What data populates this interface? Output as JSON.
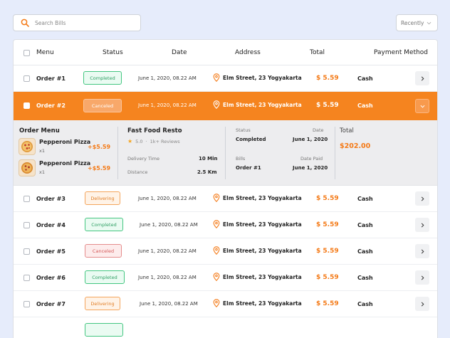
{
  "search": {
    "placeholder": "Search Bills"
  },
  "sort": {
    "label": "Recently"
  },
  "columns": {
    "menu": "Menu",
    "status": "Status",
    "date": "Date",
    "address": "Address",
    "total": "Total",
    "payment": "Payment Method"
  },
  "orders": [
    {
      "order": "Order #1",
      "status": "Completed",
      "date": "June 1, 2020, 08.22 AM",
      "address": "Elm Street, 23 Yogyakarta",
      "total": "$ 5.59",
      "payment": "Cash"
    },
    {
      "order": "Order #2",
      "status": "Canceled",
      "date": "June 1, 2020, 08.22 AM",
      "address": "Elm Street, 23 Yogyakarta",
      "total": "$ 5.59",
      "payment": "Cash"
    },
    {
      "order": "Order #3",
      "status": "Delivering",
      "date": "June 1, 2020, 08.22 AM",
      "address": "Elm Street, 23 Yogyakarta",
      "total": "$ 5.59",
      "payment": "Cash"
    },
    {
      "order": "Order #4",
      "status": "Completed",
      "date": "June 1, 2020, 08.22 AM",
      "address": "Elm Street, 23 Yogyakarta",
      "total": "$ 5.59",
      "payment": "Cash"
    },
    {
      "order": "Order #5",
      "status": "Canceled",
      "date": "June 1, 2020, 08.22 AM",
      "address": "Elm Street, 23 Yogyakarta",
      "total": "$ 5.59",
      "payment": "Cash"
    },
    {
      "order": "Order #6",
      "status": "Completed",
      "date": "June 1, 2020, 08.22 AM",
      "address": "Elm Street, 23 Yogyakarta",
      "total": "$ 5.59",
      "payment": "Cash"
    },
    {
      "order": "Order #7",
      "status": "Delivering",
      "date": "June 1, 2020, 08.22 AM",
      "address": "Elm Street, 23 Yogyakarta",
      "total": "$ 5.59",
      "payment": "Cash"
    }
  ],
  "detail": {
    "menu_title": "Order Menu",
    "items": [
      {
        "name": "Pepperoni Pizza",
        "qty": "x1",
        "price": "+$5.59"
      },
      {
        "name": "Pepperoni Pizza",
        "qty": "x1",
        "price": "+$5.59"
      }
    ],
    "restaurant": {
      "name": "Fast Food Resto",
      "rating": "5.0",
      "reviews": "1k+ Reviews",
      "delivery_time_label": "Delivery Time",
      "delivery_time": "10 Min",
      "distance_label": "Distance",
      "distance": "2.5 Km"
    },
    "status_label": "Status",
    "status_value": "Completed",
    "date_label": "Date",
    "date_value": "June 1, 2020",
    "bills_label": "Bills",
    "bills_value": "Order #1",
    "date_paid_label": "Date Paid",
    "date_paid_value": "June 1, 2020",
    "total_label": "Total",
    "total_value": "$202.00"
  },
  "colors": {
    "accent": "#f5841f",
    "completed": "#44c681",
    "canceled": "#e58c8c",
    "delivering": "#f4a55c"
  }
}
